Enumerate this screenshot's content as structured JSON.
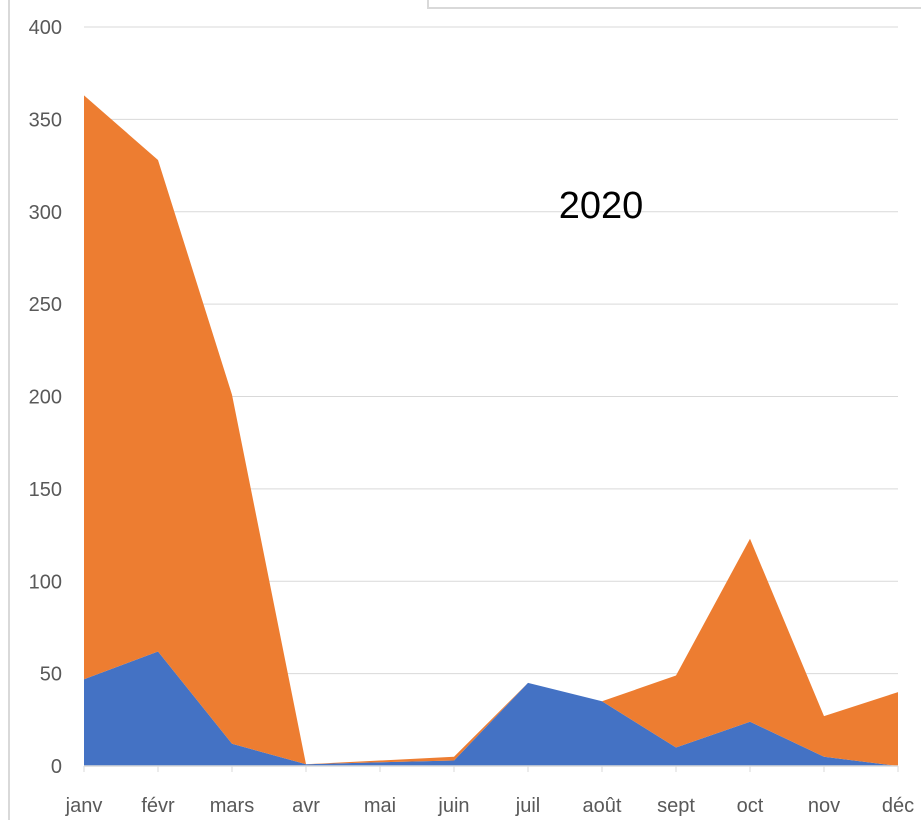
{
  "chart_data": {
    "type": "area",
    "stacked": true,
    "title": "2020",
    "categories": [
      "janv",
      "févr",
      "mars",
      "avr",
      "mai",
      "juin",
      "juil",
      "août",
      "sept",
      "oct",
      "nov",
      "déc"
    ],
    "series": [
      {
        "color": "#4472C4",
        "values": [
          47,
          62,
          12,
          1,
          2,
          3,
          45,
          35,
          10,
          24,
          5,
          0
        ]
      },
      {
        "color": "#ED7D31",
        "values": [
          316,
          266,
          189,
          0,
          1,
          2,
          0,
          0,
          39,
          99,
          22,
          40
        ]
      }
    ],
    "ylim": [
      0,
      400
    ],
    "yticks": [
      0,
      50,
      100,
      150,
      200,
      250,
      300,
      350,
      400
    ],
    "grid": true,
    "legend": "none"
  }
}
